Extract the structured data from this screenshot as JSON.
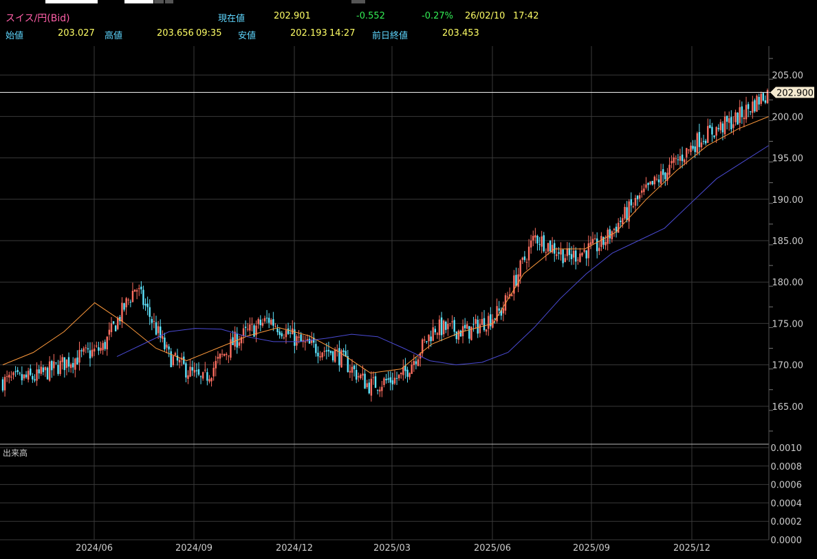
{
  "header": {
    "symbol": "スイス/円(Bid)",
    "current_label": "現在値",
    "current_value": "202.901",
    "change": "-0.552",
    "change_pct": "-0.27%",
    "date": "26/02/10",
    "time": "17:42",
    "open_label": "始値",
    "open_value": "203.027",
    "high_label": "高値",
    "high_value": "203.656",
    "high_time": "09:35",
    "low_label": "安値",
    "low_value": "202.193",
    "low_time": "14:27",
    "prev_close_label": "前日終値",
    "prev_close_value": "203.453"
  },
  "volume_panel": {
    "label": "出来高"
  },
  "colors": {
    "up": "#ff6f61",
    "down": "#5fe6ff",
    "ma_short": "#ff9a3c",
    "ma_long": "#4b4bd6",
    "price_line": "#ffffff",
    "grid": "#3a3a3a",
    "tag_bg": "#f5ead0"
  },
  "chart_data": {
    "type": "line",
    "title": "",
    "price_axis": {
      "ticks": [
        "205.00",
        "200.00",
        "195.00",
        "190.00",
        "185.00",
        "180.00",
        "175.00",
        "170.00",
        "165.00"
      ],
      "ylim": [
        160.5,
        208.5
      ]
    },
    "volume_axis": {
      "ticks": [
        "0.0010",
        "0.0008",
        "0.0006",
        "0.0004",
        "0.0002",
        "0.0000"
      ],
      "ylim": [
        0,
        0.001
      ]
    },
    "x_ticks": [
      "2024/06",
      "2024/09",
      "2024/12",
      "2025/03",
      "2025/06",
      "2025/09",
      "2025/12"
    ],
    "current_price_tag": "202.900",
    "current_price": 202.9,
    "price_path": [
      [
        "2024/03",
        168.0
      ],
      [
        "2024/04",
        168.5
      ],
      [
        "2024/05",
        170.5
      ],
      [
        "2024/06",
        172.0
      ],
      [
        "2024/07",
        179.5
      ],
      [
        "2024/08",
        171.0
      ],
      [
        "2024/09",
        168.0
      ],
      [
        "2024/10",
        173.0
      ],
      [
        "2024/11",
        175.5
      ],
      [
        "2024/12",
        172.5
      ],
      [
        "2025/01",
        171.5
      ],
      [
        "2025/02",
        167.5
      ],
      [
        "2025/03",
        168.5
      ],
      [
        "2025/04",
        174.5
      ],
      [
        "2025/05",
        174.0
      ],
      [
        "2025/06",
        176.5
      ],
      [
        "2025/07",
        185.5
      ],
      [
        "2025/08",
        183.0
      ],
      [
        "2025/09",
        184.5
      ],
      [
        "2025/10",
        189.5
      ],
      [
        "2025/11",
        193.5
      ],
      [
        "2025/12",
        197.5
      ],
      [
        "2026/01",
        199.5
      ],
      [
        "2026/02",
        202.9
      ]
    ],
    "series": [
      {
        "name": "",
        "values": [
          170,
          171.5,
          174,
          177.5,
          175,
          172,
          170.5,
          172,
          173.5,
          174.5,
          173.5,
          171.5,
          169,
          169.5,
          172.5,
          174,
          175,
          181,
          184,
          184,
          186,
          190,
          193.5,
          196.5,
          198.5,
          200
        ]
      },
      {
        "name": "",
        "values": [
          171,
          172.5,
          174,
          174.4,
          174.3,
          173.4,
          172.8,
          172.8,
          173.2,
          173.7,
          173.4,
          172.0,
          170.5,
          170.0,
          170.3,
          171.5,
          174.5,
          178.0,
          181.0,
          183.5,
          185.0,
          186.5,
          189.5,
          192.5,
          194.5,
          196.5
        ]
      }
    ]
  }
}
